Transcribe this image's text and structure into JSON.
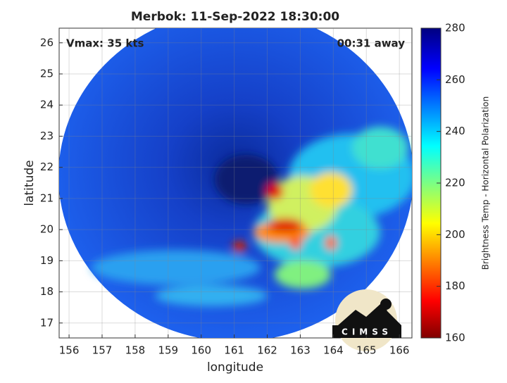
{
  "chart_data": {
    "type": "map",
    "title": "Merbok: 11-Sep-2022 18:30:00",
    "x_label": "longitude",
    "y_label": "latitude",
    "annotations": [
      "Vmax: 35 kts",
      "00:31 away"
    ],
    "xlim": [
      155.7,
      166.38
    ],
    "ylim": [
      16.52,
      26.47
    ],
    "xticks": [
      156,
      157,
      158,
      159,
      160,
      161,
      162,
      163,
      164,
      165,
      166
    ],
    "yticks": [
      17,
      18,
      19,
      20,
      21,
      22,
      23,
      24,
      25,
      26
    ],
    "grid": true,
    "colorbar": {
      "label": "Brightness Temp - Horizontal Polarization",
      "clim": [
        160,
        280
      ],
      "ticks": [
        160,
        180,
        200,
        220,
        240,
        260,
        280
      ]
    },
    "logo": "CIMSS"
  }
}
